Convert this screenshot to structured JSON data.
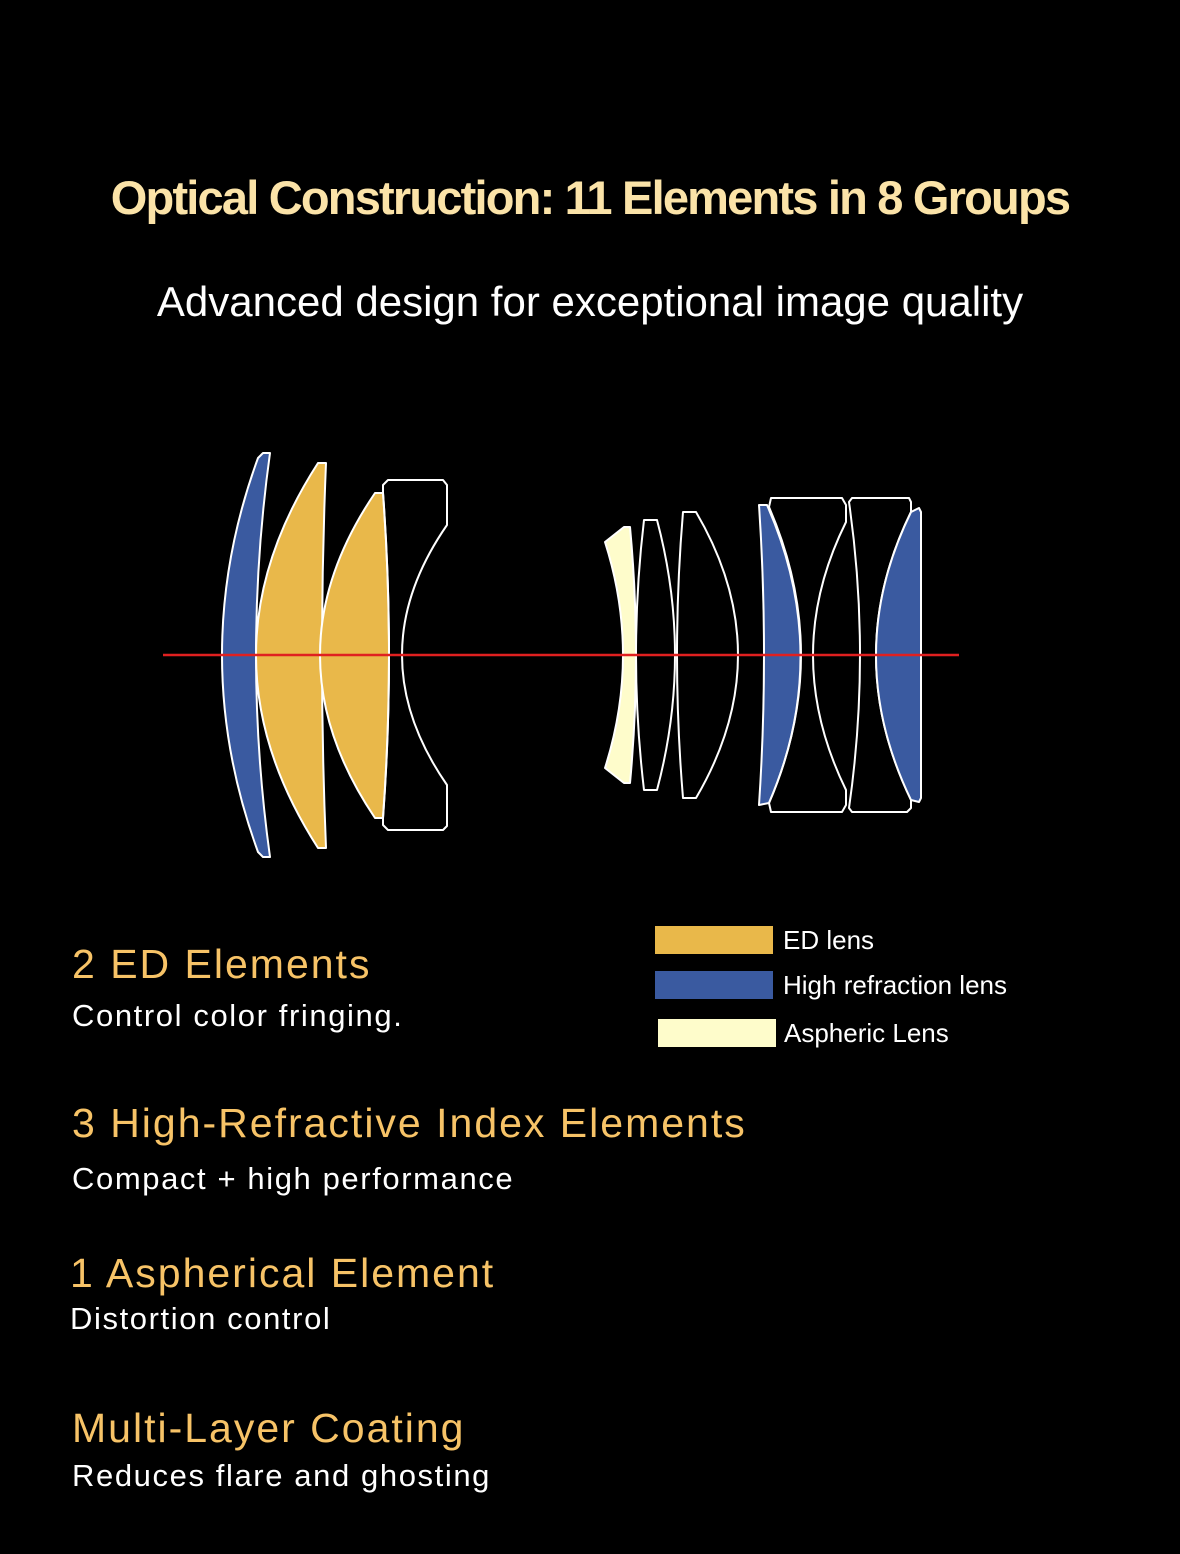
{
  "header": {
    "title": "Optical Construction: 11 Elements in 8 Groups",
    "subtitle": "Advanced design for exceptional image quality"
  },
  "colors": {
    "ed_lens": "#e9b84a",
    "high_refraction_lens": "#3a5aa0",
    "aspheric_lens": "#fefccb",
    "optical_axis": "#e02020",
    "outline": "#ffffff",
    "heading": "#f7c367",
    "title": "#fbe3a8"
  },
  "legend": [
    {
      "label": "ED lens",
      "type": "ed_lens"
    },
    {
      "label": "High refraction lens",
      "type": "high_refraction_lens"
    },
    {
      "label": "Aspheric Lens",
      "type": "aspheric_lens"
    }
  ],
  "features": [
    {
      "heading": "2 ED Elements",
      "description": "Control color fringing."
    },
    {
      "heading": "3 High-Refractive Index Elements",
      "description": "Compact + high performance"
    },
    {
      "heading": "1 Aspherical Element",
      "description": "Distortion control"
    },
    {
      "heading": "Multi-Layer Coating",
      "description": "Reduces flare and ghosting"
    }
  ]
}
